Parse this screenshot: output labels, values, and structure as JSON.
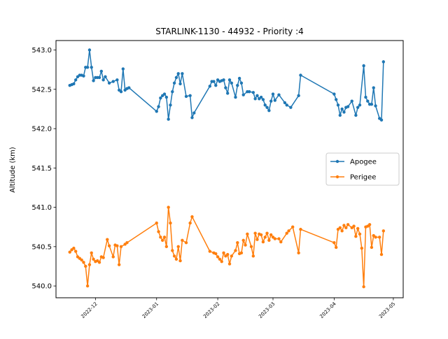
{
  "chart_data": {
    "type": "line",
    "title": "STARLINK-1130 - 44932 - Priority :4",
    "xlabel": "",
    "ylabel": "Altitude (km)",
    "xlim": [
      "2022-11-11",
      "2023-05-06"
    ],
    "ylim": [
      539.85,
      543.12
    ],
    "x_ticks": [
      "2022-12-01",
      "2023-01-01",
      "2023-02-01",
      "2023-03-01",
      "2023-04-01",
      "2023-05-01"
    ],
    "x_tick_labels": [
      "2022-12",
      "2023-01",
      "2023-02",
      "2023-03",
      "2023-04",
      "2023-05"
    ],
    "y_ticks": [
      540.0,
      540.5,
      541.0,
      541.5,
      542.0,
      542.5,
      543.0
    ],
    "y_tick_labels": [
      "540.0",
      "540.5",
      "541.0",
      "541.5",
      "542.0",
      "542.5",
      "543.0"
    ],
    "grid": false,
    "legend_position": "center-right",
    "series": [
      {
        "name": "Apogee",
        "color": "#1f77b4",
        "points": [
          [
            "2022-11-18",
            542.55
          ],
          [
            "2022-11-19",
            542.56
          ],
          [
            "2022-11-20",
            542.57
          ],
          [
            "2022-11-21",
            542.62
          ],
          [
            "2022-11-22",
            542.66
          ],
          [
            "2022-11-23",
            542.68
          ],
          [
            "2022-11-24",
            542.68
          ],
          [
            "2022-11-25",
            542.67
          ],
          [
            "2022-11-26",
            542.78
          ],
          [
            "2022-11-27",
            542.78
          ],
          [
            "2022-11-28",
            543.0
          ],
          [
            "2022-11-29",
            542.78
          ],
          [
            "2022-11-30",
            542.61
          ],
          [
            "2022-12-01",
            542.65
          ],
          [
            "2022-12-02",
            542.65
          ],
          [
            "2022-12-03",
            542.65
          ],
          [
            "2022-12-04",
            542.73
          ],
          [
            "2022-12-05",
            542.62
          ],
          [
            "2022-12-06",
            542.66
          ],
          [
            "2022-12-08",
            542.58
          ],
          [
            "2022-12-10",
            542.6
          ],
          [
            "2022-12-12",
            542.62
          ],
          [
            "2022-12-13",
            542.49
          ],
          [
            "2022-12-14",
            542.47
          ],
          [
            "2022-12-15",
            542.76
          ],
          [
            "2022-12-16",
            542.49
          ],
          [
            "2022-12-17",
            542.51
          ],
          [
            "2022-12-18",
            542.52
          ],
          [
            "2023-01-01",
            542.22
          ],
          [
            "2023-01-02",
            542.28
          ],
          [
            "2023-01-03",
            542.39
          ],
          [
            "2023-01-04",
            542.42
          ],
          [
            "2023-01-05",
            542.44
          ],
          [
            "2023-01-06",
            542.4
          ],
          [
            "2023-01-07",
            542.12
          ],
          [
            "2023-01-08",
            542.3
          ],
          [
            "2023-01-09",
            542.47
          ],
          [
            "2023-01-10",
            542.58
          ],
          [
            "2023-01-11",
            542.65
          ],
          [
            "2023-01-12",
            542.7
          ],
          [
            "2023-01-13",
            542.57
          ],
          [
            "2023-01-14",
            542.7
          ],
          [
            "2023-01-16",
            542.41
          ],
          [
            "2023-01-18",
            542.42
          ],
          [
            "2023-01-19",
            542.14
          ],
          [
            "2023-01-20",
            542.2
          ],
          [
            "2023-01-28",
            542.54
          ],
          [
            "2023-01-29",
            542.6
          ],
          [
            "2023-01-30",
            542.6
          ],
          [
            "2023-01-31",
            542.55
          ],
          [
            "2023-02-01",
            542.62
          ],
          [
            "2023-02-02",
            542.6
          ],
          [
            "2023-02-03",
            542.61
          ],
          [
            "2023-02-04",
            542.62
          ],
          [
            "2023-02-05",
            542.52
          ],
          [
            "2023-02-06",
            542.45
          ],
          [
            "2023-02-07",
            542.62
          ],
          [
            "2023-02-08",
            542.58
          ],
          [
            "2023-02-10",
            542.4
          ],
          [
            "2023-02-11",
            542.55
          ],
          [
            "2023-02-12",
            542.64
          ],
          [
            "2023-02-13",
            542.58
          ],
          [
            "2023-02-14",
            542.43
          ],
          [
            "2023-02-16",
            542.47
          ],
          [
            "2023-02-17",
            542.47
          ],
          [
            "2023-02-19",
            542.46
          ],
          [
            "2023-02-20",
            542.38
          ],
          [
            "2023-02-21",
            542.42
          ],
          [
            "2023-02-22",
            542.38
          ],
          [
            "2023-02-23",
            542.4
          ],
          [
            "2023-02-24",
            542.37
          ],
          [
            "2023-02-25",
            542.3
          ],
          [
            "2023-02-26",
            542.27
          ],
          [
            "2023-02-27",
            542.23
          ],
          [
            "2023-02-28",
            542.35
          ],
          [
            "2023-03-01",
            542.44
          ],
          [
            "2023-03-02",
            542.36
          ],
          [
            "2023-03-04",
            542.43
          ],
          [
            "2023-03-07",
            542.33
          ],
          [
            "2023-03-08",
            542.3
          ],
          [
            "2023-03-10",
            542.27
          ],
          [
            "2023-03-14",
            542.42
          ],
          [
            "2023-03-15",
            542.68
          ],
          [
            "2023-04-01",
            542.44
          ],
          [
            "2023-04-02",
            542.37
          ],
          [
            "2023-04-03",
            542.3
          ],
          [
            "2023-04-04",
            542.17
          ],
          [
            "2023-04-05",
            542.25
          ],
          [
            "2023-04-06",
            542.21
          ],
          [
            "2023-04-07",
            542.27
          ],
          [
            "2023-04-08",
            542.28
          ],
          [
            "2023-04-10",
            542.35
          ],
          [
            "2023-04-12",
            542.17
          ],
          [
            "2023-04-13",
            542.27
          ],
          [
            "2023-04-14",
            542.3
          ],
          [
            "2023-04-16",
            542.8
          ],
          [
            "2023-04-17",
            542.4
          ],
          [
            "2023-04-18",
            542.35
          ],
          [
            "2023-04-19",
            542.31
          ],
          [
            "2023-04-20",
            542.31
          ],
          [
            "2023-04-21",
            542.52
          ],
          [
            "2023-04-22",
            542.29
          ],
          [
            "2023-04-24",
            542.13
          ],
          [
            "2023-04-25",
            542.11
          ],
          [
            "2023-04-26",
            542.85
          ]
        ]
      },
      {
        "name": "Perigee",
        "color": "#ff7f0e",
        "points": [
          [
            "2022-11-18",
            540.43
          ],
          [
            "2022-11-19",
            540.46
          ],
          [
            "2022-11-20",
            540.48
          ],
          [
            "2022-11-21",
            540.44
          ],
          [
            "2022-11-22",
            540.37
          ],
          [
            "2022-11-23",
            540.35
          ],
          [
            "2022-11-24",
            540.33
          ],
          [
            "2022-11-25",
            540.3
          ],
          [
            "2022-11-26",
            540.25
          ],
          [
            "2022-11-27",
            540.0
          ],
          [
            "2022-11-28",
            540.27
          ],
          [
            "2022-11-29",
            540.42
          ],
          [
            "2022-11-30",
            540.34
          ],
          [
            "2022-12-01",
            540.31
          ],
          [
            "2022-12-02",
            540.32
          ],
          [
            "2022-12-03",
            540.3
          ],
          [
            "2022-12-04",
            540.37
          ],
          [
            "2022-12-05",
            540.36
          ],
          [
            "2022-12-07",
            540.59
          ],
          [
            "2022-12-08",
            540.51
          ],
          [
            "2022-12-10",
            540.37
          ],
          [
            "2022-12-11",
            540.52
          ],
          [
            "2022-12-12",
            540.51
          ],
          [
            "2022-12-13",
            540.27
          ],
          [
            "2022-12-14",
            540.5
          ],
          [
            "2022-12-16",
            540.53
          ],
          [
            "2022-12-17",
            540.55
          ],
          [
            "2023-01-01",
            540.8
          ],
          [
            "2023-01-02",
            540.69
          ],
          [
            "2023-01-03",
            540.62
          ],
          [
            "2023-01-04",
            540.58
          ],
          [
            "2023-01-05",
            540.62
          ],
          [
            "2023-01-06",
            540.5
          ],
          [
            "2023-01-07",
            541.0
          ],
          [
            "2023-01-08",
            540.8
          ],
          [
            "2023-01-09",
            540.45
          ],
          [
            "2023-01-10",
            540.38
          ],
          [
            "2023-01-11",
            540.34
          ],
          [
            "2023-01-12",
            540.5
          ],
          [
            "2023-01-13",
            540.32
          ],
          [
            "2023-01-14",
            540.58
          ],
          [
            "2023-01-16",
            540.55
          ],
          [
            "2023-01-18",
            540.8
          ],
          [
            "2023-01-19",
            540.88
          ],
          [
            "2023-01-28",
            540.44
          ],
          [
            "2023-01-30",
            540.42
          ],
          [
            "2023-01-31",
            540.41
          ],
          [
            "2023-02-01",
            540.37
          ],
          [
            "2023-02-02",
            540.34
          ],
          [
            "2023-02-03",
            540.31
          ],
          [
            "2023-02-04",
            540.42
          ],
          [
            "2023-02-05",
            540.38
          ],
          [
            "2023-02-06",
            540.4
          ],
          [
            "2023-02-07",
            540.28
          ],
          [
            "2023-02-08",
            540.38
          ],
          [
            "2023-02-10",
            540.45
          ],
          [
            "2023-02-11",
            540.55
          ],
          [
            "2023-02-12",
            540.41
          ],
          [
            "2023-02-13",
            540.42
          ],
          [
            "2023-02-14",
            540.58
          ],
          [
            "2023-02-15",
            540.52
          ],
          [
            "2023-02-16",
            540.66
          ],
          [
            "2023-02-18",
            540.5
          ],
          [
            "2023-02-19",
            540.38
          ],
          [
            "2023-02-20",
            540.67
          ],
          [
            "2023-02-21",
            540.59
          ],
          [
            "2023-02-22",
            540.66
          ],
          [
            "2023-02-23",
            540.65
          ],
          [
            "2023-02-24",
            540.56
          ],
          [
            "2023-02-25",
            540.62
          ],
          [
            "2023-02-26",
            540.67
          ],
          [
            "2023-02-27",
            540.58
          ],
          [
            "2023-02-28",
            540.65
          ],
          [
            "2023-03-01",
            540.62
          ],
          [
            "2023-03-02",
            540.6
          ],
          [
            "2023-03-04",
            540.6
          ],
          [
            "2023-03-05",
            540.56
          ],
          [
            "2023-03-08",
            540.67
          ],
          [
            "2023-03-09",
            540.7
          ],
          [
            "2023-03-11",
            540.75
          ],
          [
            "2023-03-14",
            540.42
          ],
          [
            "2023-03-15",
            540.72
          ],
          [
            "2023-04-01",
            540.55
          ],
          [
            "2023-04-02",
            540.49
          ],
          [
            "2023-04-03",
            540.72
          ],
          [
            "2023-04-04",
            540.74
          ],
          [
            "2023-04-05",
            540.7
          ],
          [
            "2023-04-06",
            540.77
          ],
          [
            "2023-04-07",
            540.74
          ],
          [
            "2023-04-08",
            540.78
          ],
          [
            "2023-04-10",
            540.74
          ],
          [
            "2023-04-11",
            540.76
          ],
          [
            "2023-04-12",
            540.63
          ],
          [
            "2023-04-13",
            540.73
          ],
          [
            "2023-04-14",
            540.66
          ],
          [
            "2023-04-15",
            540.48
          ],
          [
            "2023-04-16",
            539.99
          ],
          [
            "2023-04-17",
            540.75
          ],
          [
            "2023-04-18",
            540.76
          ],
          [
            "2023-04-19",
            540.78
          ],
          [
            "2023-04-20",
            540.49
          ],
          [
            "2023-04-21",
            540.64
          ],
          [
            "2023-04-22",
            540.62
          ],
          [
            "2023-04-24",
            540.62
          ],
          [
            "2023-04-25",
            540.4
          ],
          [
            "2023-04-26",
            540.7
          ]
        ]
      }
    ]
  }
}
